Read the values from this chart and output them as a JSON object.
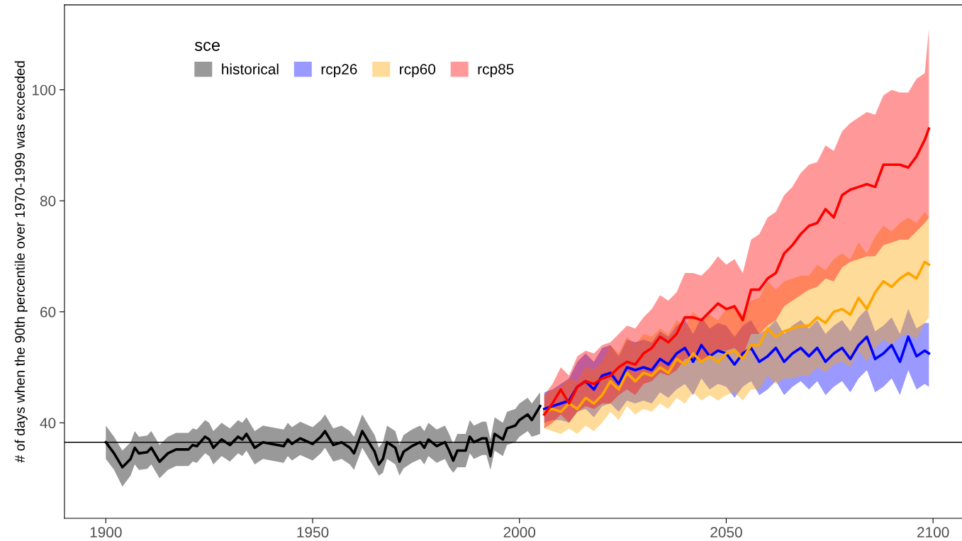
{
  "chart_data": {
    "type": "line",
    "ylabel": "# of days when the 90th percentile over 1970-1999 was exceeded",
    "legend_title": "sce",
    "legend": "top left",
    "grid": false,
    "marker": "none",
    "line_style": "solid",
    "xlim": [
      1890,
      2107
    ],
    "ylim": [
      22.8,
      115.3
    ],
    "xticks": [
      1900,
      1950,
      2000,
      2050,
      2100
    ],
    "yticks": [
      40,
      60,
      80,
      100
    ],
    "ref_lines": [
      {
        "axis": "y",
        "value": 36.5,
        "color": "#000000"
      }
    ],
    "series": [
      {
        "name": "historical",
        "color": "#000000",
        "x": [
          1900,
          1902,
          1904,
          1906,
          1907,
          1908,
          1910,
          1911,
          1913,
          1915,
          1917,
          1920,
          1921,
          1922,
          1924,
          1925,
          1926,
          1928,
          1930,
          1932,
          1933,
          1934,
          1936,
          1938,
          1940,
          1943,
          1944,
          1945,
          1947,
          1950,
          1952,
          1953,
          1955,
          1957,
          1959,
          1960,
          1962,
          1964,
          1965,
          1966,
          1967,
          1968,
          1970,
          1971,
          1972,
          1974,
          1976,
          1977,
          1978,
          1980,
          1982,
          1983,
          1984,
          1985,
          1987,
          1988,
          1989,
          1991,
          1992,
          1993,
          1994,
          1996,
          1997,
          1999,
          2000,
          2002,
          2003,
          2005
        ],
        "values": [
          36.5,
          34.5,
          32,
          33.5,
          35.5,
          34.5,
          34.7,
          35.5,
          33,
          34.5,
          35.2,
          35.2,
          36,
          35.8,
          37.5,
          37,
          35.5,
          37,
          36,
          37.5,
          37,
          38,
          35.5,
          36.5,
          36.2,
          35.8,
          37,
          36.2,
          37.2,
          36.2,
          37.5,
          38.5,
          36,
          36.5,
          35.5,
          34.5,
          38.5,
          36,
          34.8,
          32.5,
          33.5,
          36.5,
          35.5,
          33,
          34.8,
          35.8,
          36.5,
          35.5,
          37,
          35.8,
          36.5,
          35,
          33.2,
          35,
          35,
          37.5,
          36.5,
          37.2,
          37.2,
          34,
          38,
          37,
          39,
          39.5,
          40.5,
          41.5,
          40.5,
          43
        ],
        "lower": [
          33.5,
          31.5,
          28.5,
          30.5,
          32.5,
          31.5,
          31.7,
          32.5,
          30,
          31.5,
          32.2,
          32.2,
          33,
          32.8,
          34.5,
          34,
          32.5,
          34,
          33,
          34.5,
          34,
          35,
          32.5,
          33.5,
          33.2,
          32.8,
          34,
          33.2,
          34.2,
          33.2,
          34.5,
          35.5,
          33,
          33.5,
          32.5,
          31.5,
          35.5,
          33,
          31.8,
          30.5,
          31,
          33.5,
          32.5,
          30.5,
          31.8,
          32.8,
          33.5,
          32.5,
          34,
          32.8,
          33.5,
          32,
          31,
          32,
          32,
          34.5,
          33.5,
          34.2,
          34.2,
          31.5,
          35,
          34,
          36,
          36.5,
          37.5,
          38.5,
          37.5,
          38
        ],
        "upper": [
          39.5,
          37.5,
          35,
          36.5,
          38.5,
          37.5,
          37.7,
          38.5,
          36,
          37.5,
          38.2,
          38.2,
          39,
          38.8,
          40.5,
          40,
          38.5,
          40,
          39,
          40.5,
          40,
          41,
          38.5,
          39.5,
          39.2,
          38.8,
          40,
          39.2,
          40.2,
          39.2,
          40.5,
          41.5,
          39,
          39.5,
          38.5,
          37.5,
          41.5,
          39,
          37.8,
          35.5,
          36.5,
          39.5,
          38.5,
          36,
          37.8,
          38.8,
          39.5,
          38.5,
          40,
          38.8,
          39.5,
          38,
          36.2,
          38,
          38,
          40.5,
          39.5,
          40.2,
          40.2,
          37,
          41,
          40,
          42,
          42.5,
          43.5,
          44.5,
          43.5,
          45.5
        ]
      },
      {
        "name": "rcp26",
        "color": "#0000ff",
        "x": [
          2006,
          2008,
          2010,
          2012,
          2014,
          2016,
          2018,
          2020,
          2022,
          2024,
          2026,
          2028,
          2030,
          2032,
          2034,
          2036,
          2038,
          2040,
          2042,
          2044,
          2046,
          2048,
          2050,
          2052,
          2054,
          2056,
          2058,
          2060,
          2062,
          2064,
          2066,
          2068,
          2070,
          2072,
          2074,
          2076,
          2078,
          2080,
          2082,
          2084,
          2086,
          2088,
          2090,
          2092,
          2094,
          2096,
          2098,
          2099
        ],
        "values": [
          42.5,
          43,
          43.5,
          44,
          46.5,
          47.5,
          46,
          48.5,
          49,
          47,
          50,
          49.5,
          50,
          49.5,
          51.5,
          50.5,
          52.5,
          53.5,
          51,
          54,
          52,
          53,
          52.5,
          50.5,
          52.5,
          53.5,
          51,
          52,
          53.5,
          51,
          52.5,
          53.5,
          52,
          53.5,
          51,
          52.5,
          53.5,
          51.5,
          54,
          55.5,
          51.5,
          52.5,
          54,
          51,
          55.5,
          52,
          53,
          52.5
        ],
        "lower": [
          40,
          40.5,
          40.5,
          40,
          42,
          42.5,
          41,
          43,
          43.5,
          42,
          44,
          43.5,
          44,
          43.5,
          45.5,
          44.5,
          46,
          47,
          45,
          48,
          46,
          47,
          46.5,
          44.5,
          46.5,
          47.5,
          45,
          46,
          47.5,
          45,
          46.5,
          47.5,
          46,
          47.5,
          45,
          46.5,
          47.5,
          45.5,
          48,
          49.5,
          45.5,
          46.5,
          48,
          45,
          49.5,
          46,
          47,
          46.5
        ],
        "upper": [
          45.5,
          46,
          47,
          48,
          51,
          52.5,
          51,
          53.5,
          54,
          52,
          55,
          54.5,
          55,
          54.5,
          56.5,
          55.5,
          57.5,
          58.5,
          56,
          59,
          57,
          58,
          57.5,
          55.5,
          57.5,
          58.5,
          56,
          57,
          58.5,
          56,
          57.5,
          58.5,
          57,
          58.5,
          56,
          57.5,
          58.5,
          56.5,
          59,
          60.5,
          56.5,
          57.5,
          59,
          56,
          60.5,
          57,
          58,
          58
        ]
      },
      {
        "name": "rcp60",
        "color": "#ffa500",
        "x": [
          2006,
          2008,
          2010,
          2012,
          2014,
          2016,
          2018,
          2020,
          2022,
          2024,
          2026,
          2028,
          2030,
          2032,
          2034,
          2036,
          2038,
          2040,
          2042,
          2044,
          2046,
          2048,
          2050,
          2052,
          2054,
          2056,
          2058,
          2060,
          2062,
          2064,
          2066,
          2068,
          2070,
          2072,
          2074,
          2076,
          2078,
          2080,
          2082,
          2084,
          2086,
          2088,
          2090,
          2092,
          2094,
          2096,
          2098,
          2099
        ],
        "values": [
          42,
          42.5,
          42,
          43.5,
          42.5,
          44.5,
          43.5,
          45,
          47.5,
          46,
          49,
          47.5,
          49,
          48.5,
          50,
          49,
          51.5,
          50.5,
          52.5,
          51,
          52,
          51,
          52.5,
          53,
          51.5,
          54,
          54,
          57,
          55.5,
          56.5,
          57,
          57.5,
          57.5,
          59,
          58,
          60,
          60.5,
          59.5,
          62.5,
          60.5,
          63.5,
          65.5,
          64.5,
          66,
          67,
          66,
          69,
          68.5
        ],
        "lower": [
          39,
          38.5,
          38,
          39,
          38,
          39.5,
          38.5,
          40,
          42,
          40.5,
          43,
          41.5,
          42.5,
          42,
          43.5,
          42.5,
          44.5,
          43.5,
          45.5,
          44,
          45,
          44,
          45,
          45.5,
          44,
          46,
          46,
          48.5,
          47,
          48,
          48,
          48.5,
          48.5,
          50,
          49,
          50.5,
          51,
          50,
          53,
          51,
          53.5,
          55,
          54,
          55.5,
          56,
          55,
          58,
          59
        ],
        "upper": [
          45,
          46,
          46.5,
          48,
          47.5,
          50,
          49.5,
          51,
          54,
          52.5,
          55.5,
          54,
          56,
          55.5,
          57,
          56,
          58.5,
          57.5,
          60,
          58.5,
          59.5,
          58.5,
          60.5,
          61,
          59.5,
          62,
          62.5,
          65.5,
          64,
          65.5,
          66,
          66.5,
          66.5,
          68.5,
          67.5,
          69.5,
          70.5,
          69.5,
          72.5,
          70.5,
          73.5,
          75.5,
          74.5,
          76,
          77,
          76,
          78,
          77
        ]
      },
      {
        "name": "rcp85",
        "color": "#ff0000",
        "x": [
          2006,
          2008,
          2010,
          2012,
          2014,
          2016,
          2018,
          2020,
          2022,
          2024,
          2026,
          2028,
          2030,
          2032,
          2034,
          2036,
          2038,
          2040,
          2042,
          2044,
          2046,
          2048,
          2050,
          2052,
          2054,
          2056,
          2058,
          2060,
          2062,
          2064,
          2066,
          2068,
          2070,
          2072,
          2074,
          2076,
          2078,
          2080,
          2082,
          2084,
          2086,
          2088,
          2090,
          2092,
          2094,
          2096,
          2098,
          2099
        ],
        "values": [
          41.5,
          43.5,
          46,
          43.5,
          46.5,
          47.5,
          47,
          48,
          48.5,
          50,
          51,
          50.5,
          52.5,
          53.5,
          55.5,
          54.5,
          56,
          59,
          59,
          58.5,
          60,
          61.5,
          60.5,
          61,
          58.5,
          64,
          64,
          66,
          67,
          70.5,
          72,
          74,
          75.5,
          76,
          78.5,
          77,
          81,
          82,
          82.5,
          83,
          82.5,
          86.5,
          86.5,
          86.5,
          86,
          88,
          91,
          93
        ],
        "lower": [
          39,
          40,
          41.5,
          40,
          42,
          43,
          42.5,
          43.5,
          43.5,
          45,
          46,
          45,
          47,
          47.5,
          49,
          48.5,
          49.5,
          51.5,
          51.5,
          51,
          52,
          53,
          53,
          53.5,
          52,
          56,
          56,
          57.5,
          58.5,
          61,
          62,
          63,
          64,
          64.5,
          66,
          65.5,
          68,
          69,
          69.5,
          70,
          70,
          72,
          72.5,
          73,
          73,
          74.5,
          76,
          77
        ],
        "upper": [
          45,
          47,
          50,
          48.5,
          52,
          53,
          52.5,
          54,
          54.5,
          56,
          57.5,
          57,
          59,
          60.5,
          63,
          62,
          63.5,
          67,
          67,
          66.5,
          68,
          70,
          68.5,
          69.5,
          67,
          73,
          74,
          77,
          78,
          81,
          82.5,
          85,
          86.5,
          87,
          90,
          89,
          92.5,
          94,
          95,
          96,
          95.5,
          99,
          100,
          99.5,
          99.5,
          102,
          103,
          111
        ]
      }
    ]
  }
}
